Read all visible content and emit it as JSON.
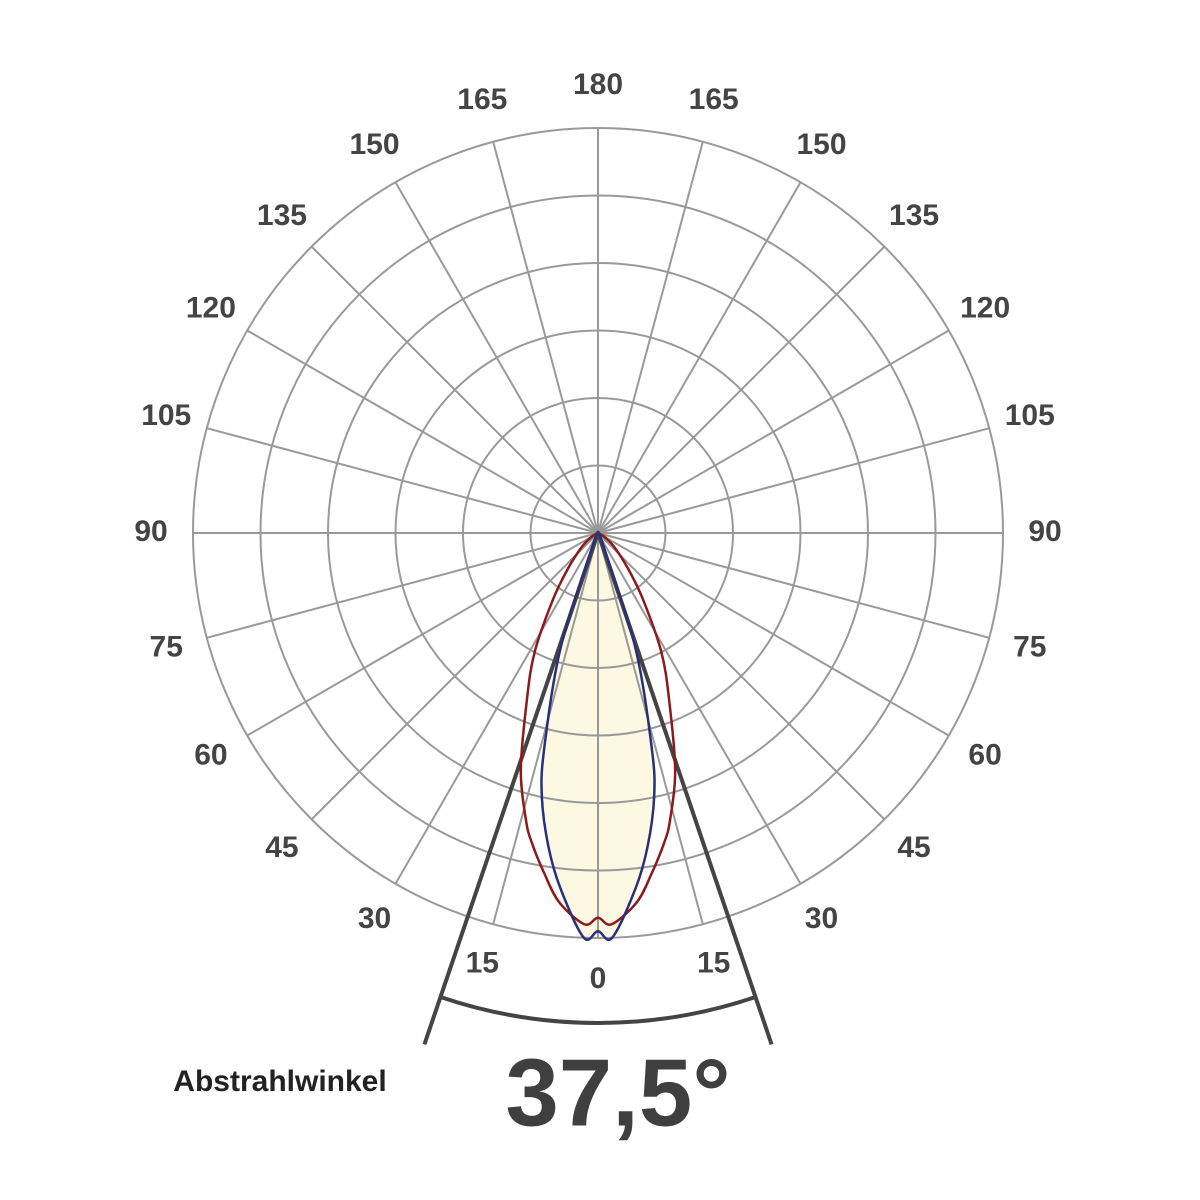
{
  "chart_data": {
    "type": "polar",
    "angle_ticks": [
      0,
      15,
      30,
      45,
      60,
      75,
      90,
      105,
      120,
      135,
      150,
      165,
      180
    ],
    "rlim": [
      0,
      6
    ],
    "rticks": [
      1,
      2,
      3,
      4,
      5,
      6
    ],
    "grid": true,
    "angles": [
      -90,
      -60,
      -50,
      -40,
      -34,
      -28,
      -23,
      -18,
      -14,
      -12,
      -9,
      -6,
      -2,
      0,
      2,
      6,
      9,
      12,
      14,
      18,
      23,
      28,
      34,
      40,
      50,
      60,
      90
    ],
    "series": [
      {
        "color": "#8b1a1a",
        "values": [
          0,
          0.1,
          0.3,
          0.7,
          1.2,
          2.0,
          2.7,
          3.7,
          4.4,
          4.7,
          5.1,
          5.5,
          5.8,
          5.7,
          5.8,
          5.5,
          5.1,
          4.7,
          4.4,
          3.7,
          2.7,
          2.0,
          1.2,
          0.7,
          0.3,
          0.1,
          0
        ]
      },
      {
        "color": "#2a2f7a",
        "fill": "#fdf8e1",
        "values": [
          0,
          0,
          0,
          0,
          0,
          0,
          0.2,
          1.8,
          3.3,
          4.0,
          4.7,
          5.3,
          6.0,
          5.9,
          6.0,
          5.3,
          4.7,
          4.0,
          3.3,
          1.8,
          0.2,
          0,
          0,
          0,
          0,
          0,
          0
        ]
      }
    ],
    "beam_angle": {
      "value": 37.5,
      "label": "37,5°"
    },
    "beam_label": "Abstrahlwinkel"
  }
}
